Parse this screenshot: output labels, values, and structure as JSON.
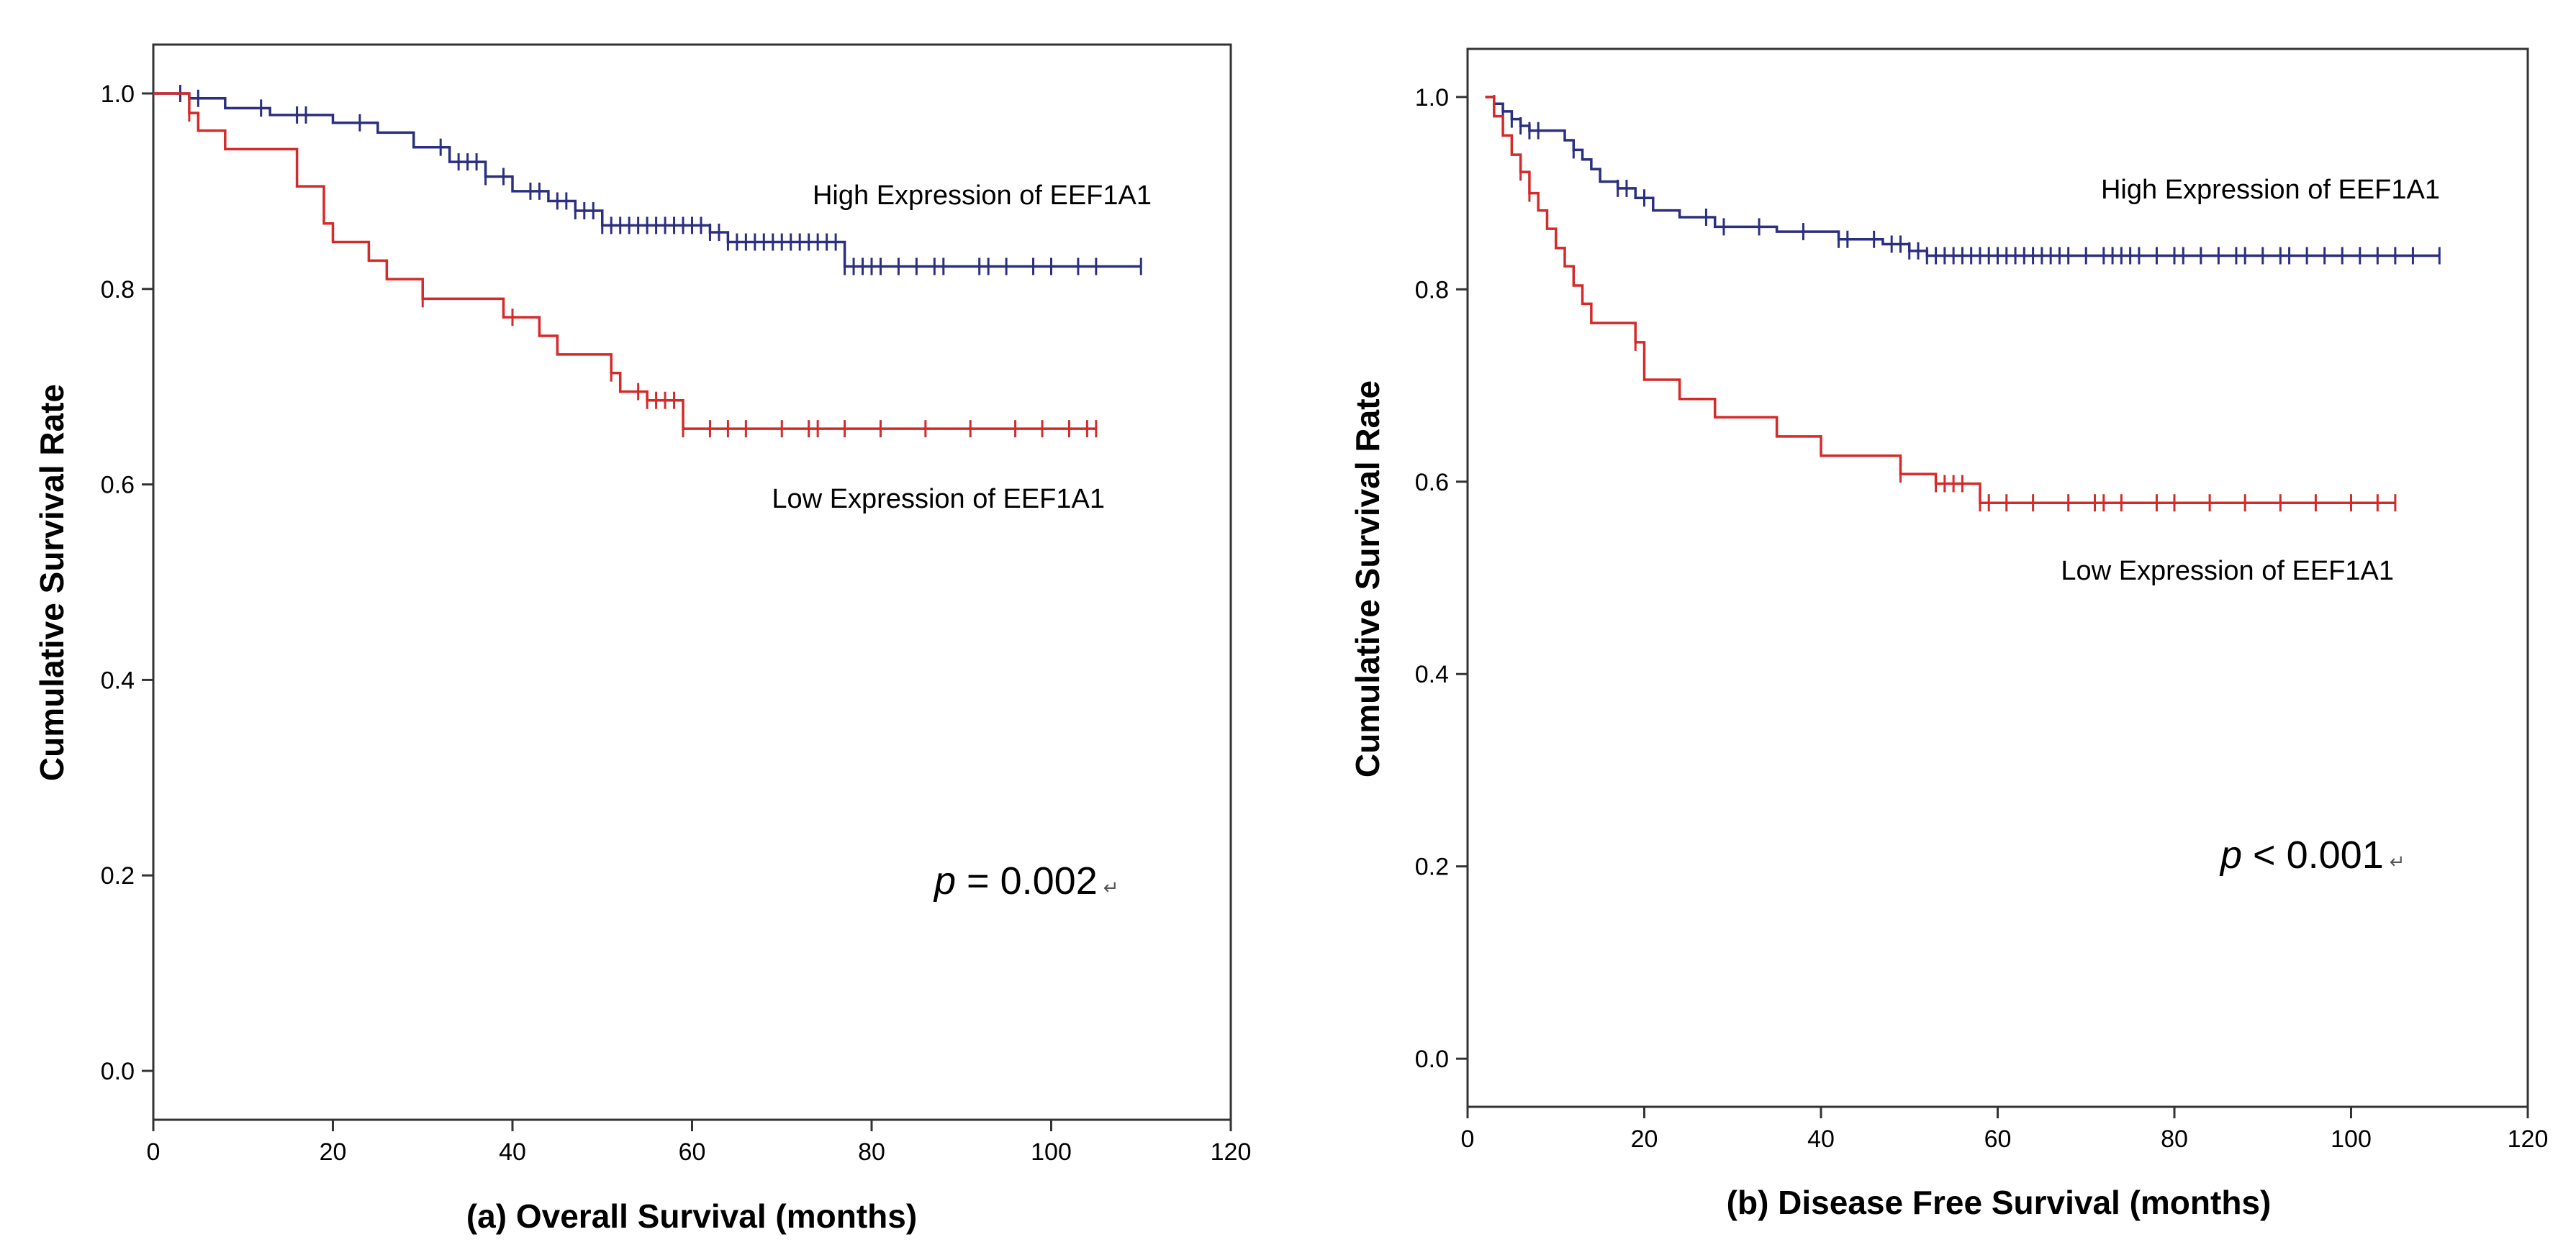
{
  "chart_data": [
    {
      "type": "line",
      "title": "",
      "xlabel": "(a) Overall Survival (months)",
      "ylabel": "Cumulative Survival Rate",
      "xlim": [
        0,
        120
      ],
      "ylim": [
        -0.05,
        1.05
      ],
      "xticks": [
        0,
        20,
        40,
        60,
        80,
        100,
        120
      ],
      "yticks": [
        0.0,
        0.2,
        0.4,
        0.6,
        0.8,
        1.0
      ],
      "xtick_labels": [
        "0",
        "20",
        "40",
        "60",
        "80",
        "100",
        "120"
      ],
      "ytick_labels": [
        "0.0",
        "0.2",
        "0.4",
        "0.6",
        "0.8",
        "1.0"
      ],
      "annotation": {
        "p": "p",
        "rest": " = 0.002",
        "mark": "↵"
      },
      "series": [
        {
          "name": "High Expression of EEF1A1",
          "color": "#2b2f7f",
          "steps": [
            [
              0,
              1.0
            ],
            [
              4,
              0.995
            ],
            [
              8,
              0.985
            ],
            [
              13,
              0.978
            ],
            [
              20,
              0.97
            ],
            [
              25,
              0.96
            ],
            [
              29,
              0.945
            ],
            [
              33,
              0.93
            ],
            [
              37,
              0.915
            ],
            [
              40,
              0.9
            ],
            [
              44,
              0.89
            ],
            [
              47,
              0.88
            ],
            [
              50,
              0.865
            ],
            [
              62,
              0.858
            ],
            [
              64,
              0.848
            ],
            [
              77,
              0.823
            ],
            [
              110,
              0.823
            ]
          ],
          "censors": [
            3,
            5,
            12,
            16,
            17,
            23,
            32,
            34,
            35,
            36,
            37,
            39,
            42,
            43,
            45,
            46,
            47,
            48,
            49,
            50,
            51,
            52,
            53,
            54,
            55,
            56,
            57,
            58,
            59,
            60,
            61,
            62,
            63,
            64,
            65,
            66,
            67,
            68,
            69,
            70,
            71,
            72,
            73,
            74,
            75,
            76,
            77,
            78,
            79,
            80,
            81,
            83,
            85,
            87,
            88,
            92,
            93,
            95,
            98,
            100,
            103,
            105,
            110
          ]
        },
        {
          "name": "Low Expression of EEF1A1",
          "color": "#d42a2a",
          "steps": [
            [
              0,
              1.0
            ],
            [
              4,
              0.98
            ],
            [
              5,
              0.962
            ],
            [
              8,
              0.943
            ],
            [
              16,
              0.905
            ],
            [
              19,
              0.867
            ],
            [
              20,
              0.848
            ],
            [
              24,
              0.829
            ],
            [
              26,
              0.81
            ],
            [
              30,
              0.79
            ],
            [
              39,
              0.771
            ],
            [
              43,
              0.752
            ],
            [
              45,
              0.733
            ],
            [
              51,
              0.714
            ],
            [
              52,
              0.695
            ],
            [
              55,
              0.686
            ],
            [
              59,
              0.657
            ],
            [
              105,
              0.657
            ]
          ],
          "censors": [
            4,
            30,
            40,
            51,
            54,
            55,
            56,
            57,
            58,
            59,
            62,
            64,
            66,
            70,
            73,
            74,
            77,
            81,
            86,
            91,
            96,
            99,
            102,
            104,
            105
          ]
        }
      ]
    },
    {
      "type": "line",
      "title": "",
      "xlabel": "(b) Disease Free Survival (months)",
      "ylabel": "Cumulative Survival Rate",
      "xlim": [
        0,
        120
      ],
      "ylim": [
        -0.05,
        1.05
      ],
      "xticks": [
        0,
        20,
        40,
        60,
        80,
        100,
        120
      ],
      "yticks": [
        0.0,
        0.2,
        0.4,
        0.6,
        0.8,
        1.0
      ],
      "xtick_labels": [
        "0",
        "20",
        "40",
        "60",
        "80",
        "100",
        "120"
      ],
      "ytick_labels": [
        "0.0",
        "0.2",
        "0.4",
        "0.6",
        "0.8",
        "1.0"
      ],
      "annotation": {
        "p": "p",
        "rest": " < 0.001",
        "mark": "↵"
      },
      "series": [
        {
          "name": "High Expression of EEF1A1",
          "color": "#2b2f7f",
          "steps": [
            [
              2,
              1.0
            ],
            [
              3,
              0.993
            ],
            [
              4,
              0.985
            ],
            [
              5,
              0.977
            ],
            [
              6,
              0.97
            ],
            [
              7,
              0.965
            ],
            [
              11,
              0.955
            ],
            [
              12,
              0.945
            ],
            [
              13,
              0.935
            ],
            [
              14,
              0.925
            ],
            [
              15,
              0.912
            ],
            [
              17,
              0.905
            ],
            [
              19,
              0.895
            ],
            [
              21,
              0.882
            ],
            [
              24,
              0.875
            ],
            [
              28,
              0.865
            ],
            [
              35,
              0.86
            ],
            [
              42,
              0.852
            ],
            [
              47,
              0.847
            ],
            [
              50,
              0.84
            ],
            [
              52,
              0.835
            ],
            [
              110,
              0.835
            ]
          ],
          "censors": [
            3,
            4,
            5,
            6,
            7,
            8,
            12,
            17,
            18,
            20,
            27,
            29,
            33,
            38,
            42,
            43,
            46,
            48,
            49,
            50,
            51,
            52,
            53,
            54,
            55,
            56,
            57,
            58,
            59,
            60,
            61,
            62,
            63,
            64,
            65,
            66,
            67,
            68,
            70,
            72,
            73,
            74,
            75,
            76,
            78,
            80,
            81,
            83,
            85,
            87,
            88,
            90,
            92,
            93,
            95,
            97,
            99,
            101,
            103,
            105,
            107,
            110
          ]
        },
        {
          "name": "Low Expression of EEF1A1",
          "color": "#d42a2a",
          "steps": [
            [
              2,
              1.0
            ],
            [
              3,
              0.98
            ],
            [
              4,
              0.96
            ],
            [
              5,
              0.94
            ],
            [
              6,
              0.922
            ],
            [
              7,
              0.9
            ],
            [
              8,
              0.882
            ],
            [
              9,
              0.863
            ],
            [
              10,
              0.843
            ],
            [
              11,
              0.824
            ],
            [
              12,
              0.804
            ],
            [
              13,
              0.785
            ],
            [
              14,
              0.765
            ],
            [
              19,
              0.745
            ],
            [
              20,
              0.706
            ],
            [
              24,
              0.686
            ],
            [
              28,
              0.667
            ],
            [
              35,
              0.647
            ],
            [
              40,
              0.627
            ],
            [
              49,
              0.608
            ],
            [
              53,
              0.598
            ],
            [
              58,
              0.578
            ],
            [
              105,
              0.578
            ]
          ],
          "censors": [
            6,
            7,
            19,
            49,
            53,
            54,
            55,
            56,
            58,
            59,
            61,
            64,
            68,
            71,
            72,
            74,
            78,
            80,
            84,
            88,
            92,
            96,
            100,
            103,
            105
          ]
        }
      ]
    }
  ]
}
